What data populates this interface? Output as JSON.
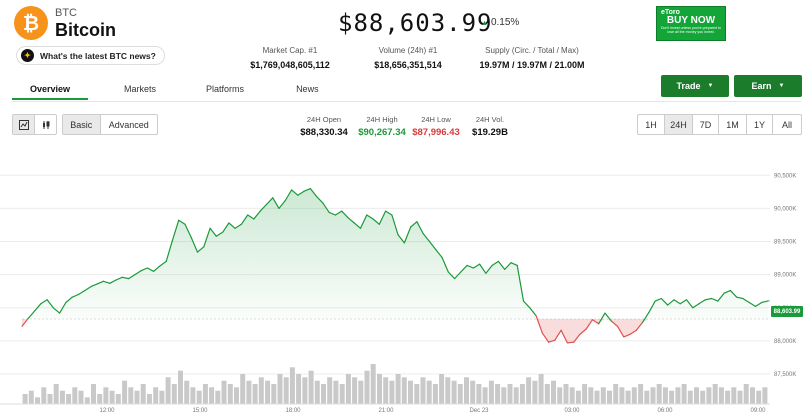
{
  "coin": {
    "symbol": "BTC",
    "name": "Bitcoin",
    "logo_glyph": "₿",
    "price": "$88,603.99",
    "change": "0.15%",
    "news_label": "What's the latest BTC news?"
  },
  "stats": [
    {
      "label": "Market Cap. #1",
      "value": "$1,769,048,605,112"
    },
    {
      "label": "Volume (24h) #1",
      "value": "$18,656,351,514"
    },
    {
      "label": "Supply (Circ. / Total / Max)",
      "value": "19.97M / 19.97M / 21.00M"
    }
  ],
  "ad": {
    "brand": "eToro",
    "cta": "BUY NOW",
    "disclaimer": "Don't invest unless you're prepared to lose all the money you invest."
  },
  "tabs": [
    "Overview",
    "Markets",
    "Platforms",
    "News"
  ],
  "actions": {
    "trade": "Trade",
    "earn": "Earn"
  },
  "toolbar": {
    "basic": "Basic",
    "advanced": "Advanced"
  },
  "ohlc": [
    {
      "label": "24H Open",
      "value": "$88,330.34",
      "color": "#111111"
    },
    {
      "label": "24H High",
      "value": "$90,267.34",
      "color": "#1a9a3a"
    },
    {
      "label": "24H Low",
      "value": "$87,996.43",
      "color": "#d93a3a"
    },
    {
      "label": "24H Vol.",
      "value": "$19.29B",
      "color": "#111111"
    }
  ],
  "ranges": [
    "1H",
    "24H",
    "7D",
    "1M",
    "1Y",
    "All"
  ],
  "active_range": "24H",
  "colors": {
    "accent": "#1a9a3a",
    "down": "#e05050",
    "button": "#1b7d2c"
  },
  "chart_data": {
    "type": "area",
    "x_ticks": [
      "12:00",
      "15:00",
      "18:00",
      "21:00",
      "Dec 23",
      "03:00",
      "06:00",
      "09:00"
    ],
    "y_ticks": [
      "90,500K",
      "90,000K",
      "89,500K",
      "89,000K",
      "88,500K",
      "88,000K",
      "87,500K"
    ],
    "baseline": 88330.34,
    "current_label": "88,603.99",
    "ylim": [
      87500,
      90550
    ],
    "series": [
      88220,
      88340,
      88450,
      88560,
      88620,
      88500,
      88420,
      88580,
      88660,
      88700,
      88760,
      88820,
      88860,
      88900,
      88870,
      88920,
      88960,
      88940,
      89000,
      89060,
      89100,
      89050,
      89130,
      89200,
      89520,
      89820,
      89760,
      89560,
      89340,
      89420,
      89700,
      89580,
      89640,
      89780,
      89700,
      89760,
      89900,
      89840,
      89960,
      90060,
      90160,
      90000,
      90120,
      90280,
      90200,
      90260,
      90300,
      90180,
      90080,
      89940,
      89900,
      89960,
      89860,
      89780,
      89700,
      89900,
      89840,
      89760,
      89960,
      89900,
      89600,
      89480,
      89720,
      89800,
      89620,
      89500,
      89380,
      89260,
      89040,
      88940,
      89040,
      89140,
      89100,
      89160,
      89020,
      89140,
      89200,
      89080,
      89180,
      89140,
      88600,
      88500,
      88380,
      88120,
      87980,
      88010,
      88160,
      87970,
      87980,
      88100,
      88180,
      88320,
      88260,
      88420,
      88300,
      88220,
      88060,
      88100,
      88160,
      88280,
      88430,
      88600,
      88640,
      88540,
      88620,
      88560,
      88620,
      88500,
      88560,
      88620,
      88640,
      88600,
      88720,
      88760,
      88660,
      88640,
      88580,
      88520,
      88580,
      88604
    ],
    "volume": [
      3,
      4,
      2,
      5,
      3,
      6,
      4,
      3,
      5,
      4,
      2,
      6,
      3,
      5,
      4,
      3,
      7,
      5,
      4,
      6,
      3,
      5,
      4,
      8,
      6,
      10,
      7,
      5,
      4,
      6,
      5,
      4,
      7,
      6,
      5,
      9,
      7,
      6,
      8,
      7,
      6,
      9,
      8,
      11,
      9,
      8,
      10,
      7,
      6,
      8,
      7,
      6,
      9,
      8,
      7,
      10,
      12,
      9,
      8,
      7,
      9,
      8,
      7,
      6,
      8,
      7,
      6,
      9,
      8,
      7,
      6,
      8,
      7,
      6,
      5,
      7,
      6,
      5,
      6,
      5,
      6,
      8,
      7,
      9,
      6,
      7,
      5,
      6,
      5,
      4,
      6,
      5,
      4,
      5,
      4,
      6,
      5,
      4,
      5,
      6,
      4,
      5,
      6,
      5,
      4,
      5,
      6,
      4,
      5,
      4,
      5,
      6,
      5,
      4,
      5,
      4,
      6,
      5,
      4,
      5
    ]
  }
}
